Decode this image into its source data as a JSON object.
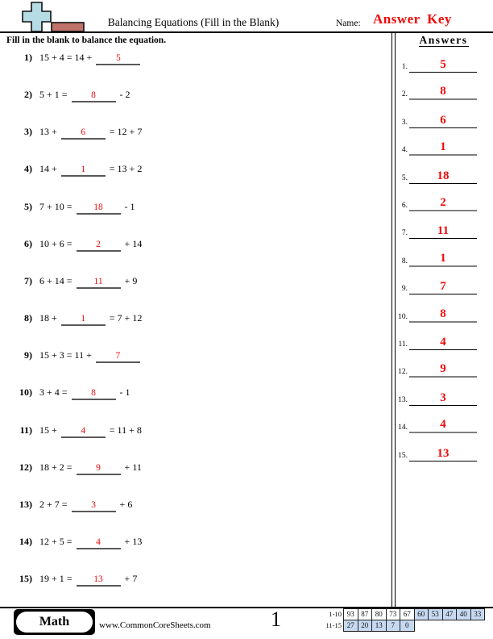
{
  "header": {
    "title": "Balancing Equations (Fill in the Blank)",
    "name_label": "Name:",
    "name_value": "Answer Key",
    "instruction": "Fill in the blank to balance the equation.",
    "answers_title": "Answers"
  },
  "colors": {
    "accent_red": "#f00a0a",
    "highlight_blue": "#c6d9f1",
    "logo_plus_blue": "#b5dbe4",
    "logo_bar_brown": "#c0736b"
  },
  "problems": [
    {
      "num": "1)",
      "pre": "15 + 4 = 14 +",
      "answer": "5",
      "post": ""
    },
    {
      "num": "2)",
      "pre": "5 + 1 =",
      "answer": "8",
      "post": "- 2"
    },
    {
      "num": "3)",
      "pre": "13 +",
      "answer": "6",
      "post": "= 12 + 7"
    },
    {
      "num": "4)",
      "pre": "14 +",
      "answer": "1",
      "post": "= 13 + 2"
    },
    {
      "num": "5)",
      "pre": "7 + 10 =",
      "answer": "18",
      "post": "- 1"
    },
    {
      "num": "6)",
      "pre": "10 + 6 =",
      "answer": "2",
      "post": "+ 14"
    },
    {
      "num": "7)",
      "pre": "6 + 14 =",
      "answer": "11",
      "post": "+ 9"
    },
    {
      "num": "8)",
      "pre": "18 +",
      "answer": "1",
      "post": "= 7 + 12"
    },
    {
      "num": "9)",
      "pre": "15 + 3 = 11 +",
      "answer": "7",
      "post": ""
    },
    {
      "num": "10)",
      "pre": "3 + 4 =",
      "answer": "8",
      "post": "- 1"
    },
    {
      "num": "11)",
      "pre": "15 +",
      "answer": "4",
      "post": "= 11 + 8"
    },
    {
      "num": "12)",
      "pre": "18 + 2 =",
      "answer": "9",
      "post": "+ 11"
    },
    {
      "num": "13)",
      "pre": "2 + 7 =",
      "answer": "3",
      "post": "+ 6"
    },
    {
      "num": "14)",
      "pre": "12 + 5 =",
      "answer": "4",
      "post": "+ 13"
    },
    {
      "num": "15)",
      "pre": "19 + 1 =",
      "answer": "13",
      "post": "+ 7"
    }
  ],
  "answer_column": [
    {
      "label": "1.",
      "value": "5"
    },
    {
      "label": "2.",
      "value": "8"
    },
    {
      "label": "3.",
      "value": "6"
    },
    {
      "label": "4.",
      "value": "1"
    },
    {
      "label": "5.",
      "value": "18"
    },
    {
      "label": "6.",
      "value": "2"
    },
    {
      "label": "7.",
      "value": "11"
    },
    {
      "label": "8.",
      "value": "1"
    },
    {
      "label": "9.",
      "value": "7"
    },
    {
      "label": "10.",
      "value": "8"
    },
    {
      "label": "11.",
      "value": "4"
    },
    {
      "label": "12.",
      "value": "9"
    },
    {
      "label": "13.",
      "value": "3"
    },
    {
      "label": "14.",
      "value": "4"
    },
    {
      "label": "15.",
      "value": "13"
    }
  ],
  "footer": {
    "subject": "Math",
    "website": "www.CommonCoreSheets.com",
    "page": "1",
    "score_rows": [
      {
        "label": "1-10",
        "cells": [
          {
            "v": "93",
            "hl": false
          },
          {
            "v": "87",
            "hl": false
          },
          {
            "v": "80",
            "hl": false
          },
          {
            "v": "73",
            "hl": false
          },
          {
            "v": "67",
            "hl": false
          },
          {
            "v": "60",
            "hl": true
          },
          {
            "v": "53",
            "hl": true
          },
          {
            "v": "47",
            "hl": true
          },
          {
            "v": "40",
            "hl": true
          },
          {
            "v": "33",
            "hl": true
          }
        ]
      },
      {
        "label": "11-15",
        "cells": [
          {
            "v": "27",
            "hl": true
          },
          {
            "v": "20",
            "hl": true
          },
          {
            "v": "13",
            "hl": true
          },
          {
            "v": "7",
            "hl": true
          },
          {
            "v": "0",
            "hl": true
          }
        ]
      }
    ]
  }
}
